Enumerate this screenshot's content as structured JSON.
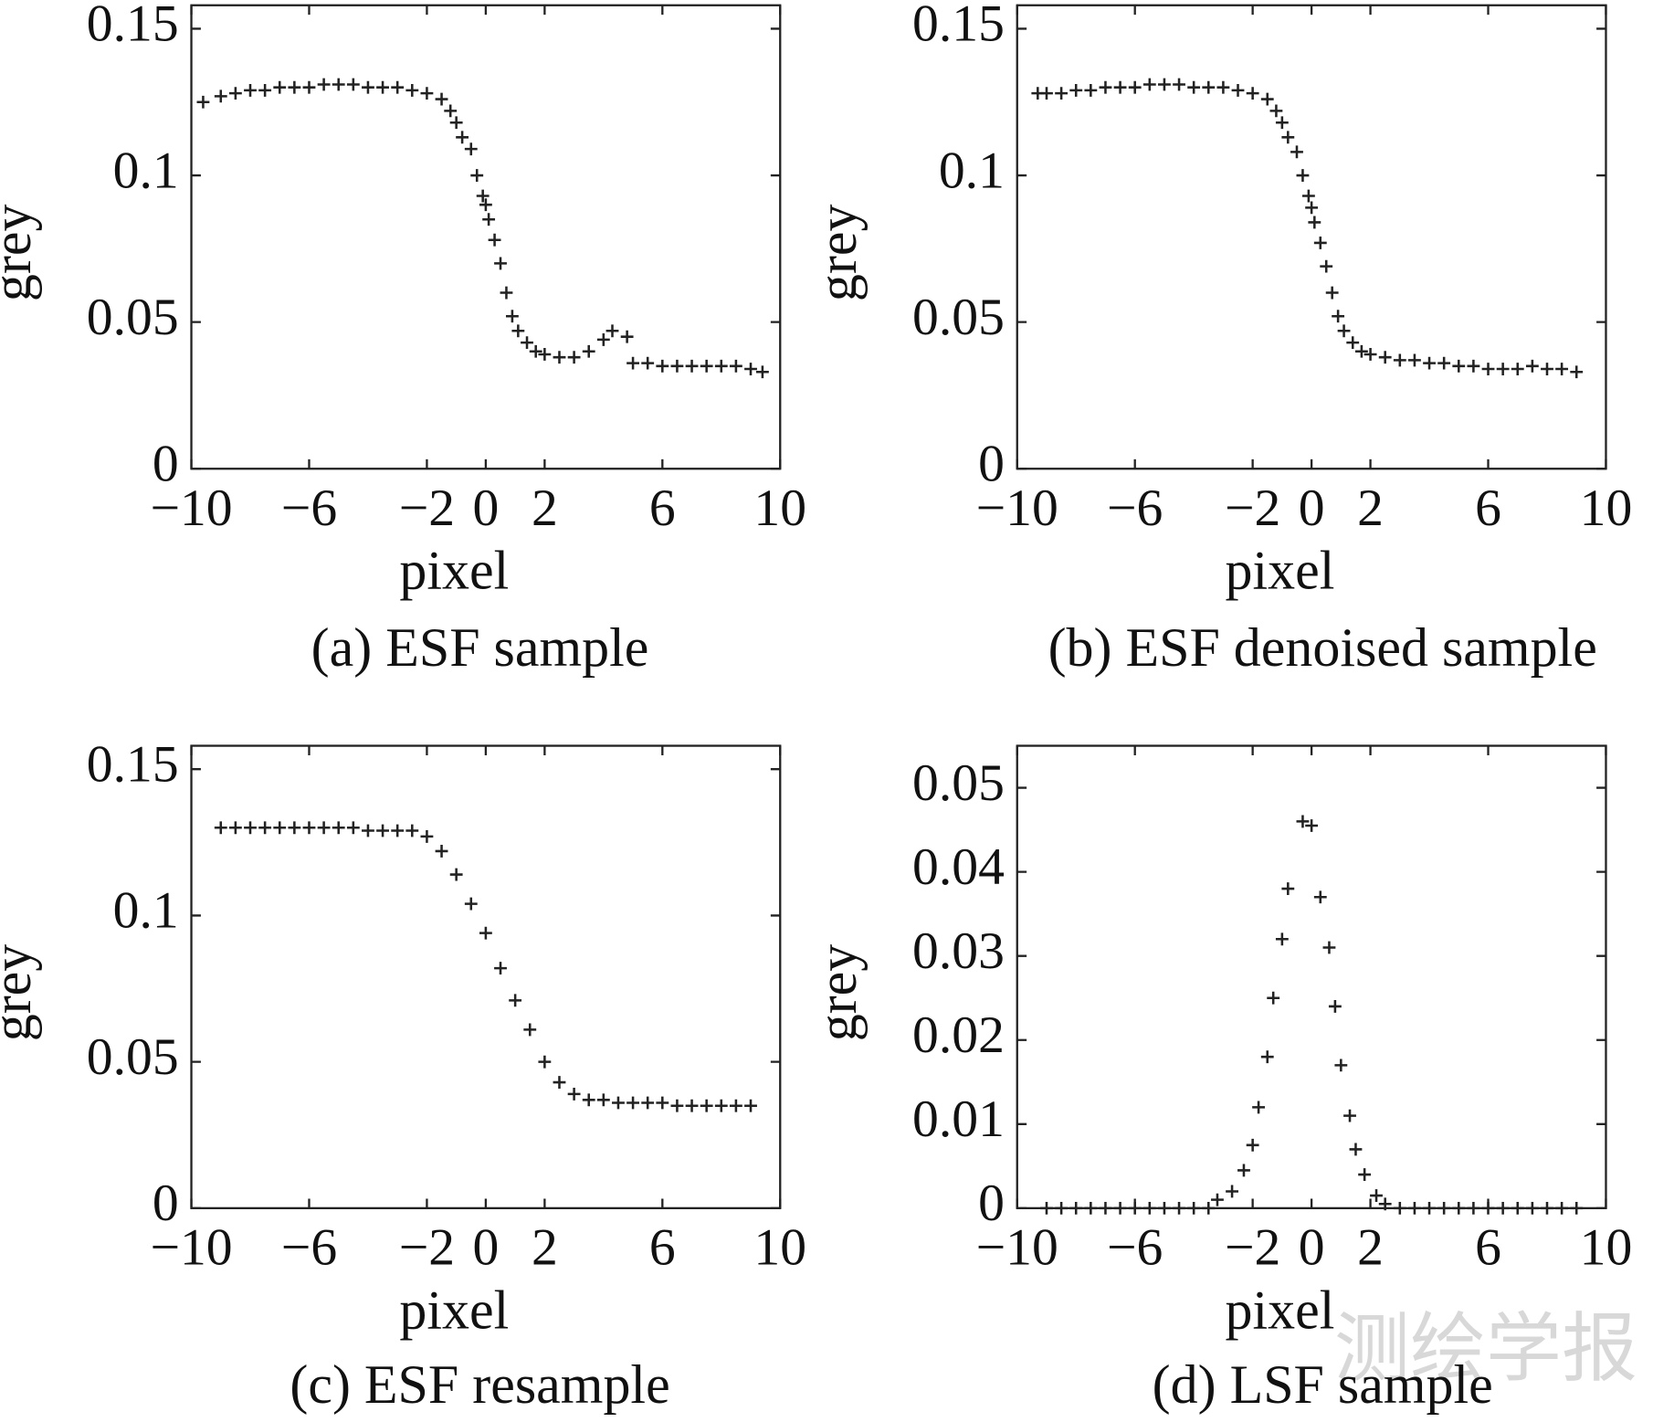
{
  "chart_data": [
    {
      "type": "scatter",
      "caption": "(a) ESF sample",
      "x_label": "pixel",
      "y_label": "grey",
      "color": "#222222",
      "xlim": [
        -10,
        10
      ],
      "ylim": [
        0,
        0.158
      ],
      "xticks": [
        {
          "value": -10,
          "label": "−10"
        },
        {
          "value": -6,
          "label": "−6"
        },
        {
          "value": -2,
          "label": "−2"
        },
        0,
        2,
        6,
        10
      ],
      "yticks": [
        0,
        0.05,
        0.1,
        0.15
      ],
      "series": [
        {
          "name": "ESF sample",
          "color": "#222222",
          "x": [
            -9.6,
            -9,
            -8.5,
            -8,
            -7.5,
            -7,
            -6.5,
            -6,
            -5.5,
            -5,
            -4.5,
            -4,
            -3.5,
            -3,
            -2.5,
            -2,
            -1.5,
            -1.2,
            -1,
            -0.8,
            -0.5,
            -0.3,
            -0.1,
            0,
            0.1,
            0.3,
            0.5,
            0.7,
            0.9,
            1.1,
            1.4,
            1.7,
            2,
            2.5,
            3,
            3.5,
            4,
            4.3,
            4.8,
            5,
            5.5,
            6,
            6.5,
            7,
            7.5,
            8,
            8.5,
            9,
            9.4
          ],
          "values": [
            0.125,
            0.127,
            0.128,
            0.129,
            0.129,
            0.13,
            0.13,
            0.13,
            0.131,
            0.131,
            0.131,
            0.13,
            0.13,
            0.13,
            0.129,
            0.128,
            0.126,
            0.122,
            0.118,
            0.113,
            0.109,
            0.1,
            0.093,
            0.09,
            0.085,
            0.078,
            0.07,
            0.06,
            0.052,
            0.047,
            0.043,
            0.04,
            0.039,
            0.038,
            0.038,
            0.04,
            0.044,
            0.047,
            0.045,
            0.036,
            0.036,
            0.035,
            0.035,
            0.035,
            0.035,
            0.035,
            0.035,
            0.034,
            0.033
          ]
        }
      ]
    },
    {
      "type": "scatter",
      "caption": "(b) ESF denoised sample",
      "x_label": "pixel",
      "y_label": "grey",
      "color": "#222222",
      "xlim": [
        -10,
        10
      ],
      "ylim": [
        0,
        0.158
      ],
      "xticks": [
        {
          "value": -10,
          "label": "−10"
        },
        {
          "value": -6,
          "label": "−6"
        },
        {
          "value": -2,
          "label": "−2"
        },
        0,
        2,
        6,
        10
      ],
      "yticks": [
        0,
        0.05,
        0.1,
        0.15
      ],
      "series": [
        {
          "name": "ESF denoised sample",
          "color": "#222222",
          "x": [
            -9.3,
            -9,
            -8.5,
            -8,
            -7.5,
            -7,
            -6.5,
            -6,
            -5.5,
            -5,
            -4.5,
            -4,
            -3.5,
            -3,
            -2.5,
            -2,
            -1.5,
            -1.2,
            -1,
            -0.8,
            -0.5,
            -0.3,
            -0.1,
            0,
            0.1,
            0.3,
            0.5,
            0.7,
            0.9,
            1.1,
            1.4,
            1.7,
            2,
            2.5,
            3,
            3.5,
            4,
            4.5,
            5,
            5.5,
            6,
            6.5,
            7,
            7.5,
            8,
            8.5,
            9
          ],
          "values": [
            0.128,
            0.128,
            0.128,
            0.129,
            0.129,
            0.13,
            0.13,
            0.13,
            0.131,
            0.131,
            0.131,
            0.13,
            0.13,
            0.13,
            0.129,
            0.128,
            0.126,
            0.122,
            0.118,
            0.113,
            0.108,
            0.1,
            0.093,
            0.089,
            0.084,
            0.077,
            0.069,
            0.06,
            0.052,
            0.047,
            0.043,
            0.04,
            0.039,
            0.038,
            0.037,
            0.037,
            0.036,
            0.036,
            0.035,
            0.035,
            0.034,
            0.034,
            0.034,
            0.035,
            0.034,
            0.034,
            0.033
          ]
        }
      ]
    },
    {
      "type": "scatter",
      "caption": "(c) ESF resample",
      "x_label": "pixel",
      "y_label": "grey",
      "color": "#222222",
      "xlim": [
        -10,
        10
      ],
      "ylim": [
        0,
        0.158
      ],
      "xticks": [
        {
          "value": -10,
          "label": "−10"
        },
        {
          "value": -6,
          "label": "−6"
        },
        {
          "value": -2,
          "label": "−2"
        },
        0,
        2,
        6,
        10
      ],
      "yticks": [
        0,
        0.05,
        0.1,
        0.15
      ],
      "series": [
        {
          "name": "ESF resample",
          "color": "#222222",
          "x": [
            -9,
            -8.5,
            -8,
            -7.5,
            -7,
            -6.5,
            -6,
            -5.5,
            -5,
            -4.5,
            -4,
            -3.5,
            -3,
            -2.5,
            -2,
            -1.5,
            -1,
            -0.5,
            0,
            0.5,
            1,
            1.5,
            2,
            2.5,
            3,
            3.5,
            4,
            4.5,
            5,
            5.5,
            6,
            6.5,
            7,
            7.5,
            8,
            8.5,
            9
          ],
          "values": [
            0.13,
            0.13,
            0.13,
            0.13,
            0.13,
            0.13,
            0.13,
            0.13,
            0.13,
            0.13,
            0.129,
            0.129,
            0.129,
            0.129,
            0.127,
            0.122,
            0.114,
            0.104,
            0.094,
            0.082,
            0.071,
            0.061,
            0.05,
            0.043,
            0.039,
            0.037,
            0.037,
            0.036,
            0.036,
            0.036,
            0.036,
            0.035,
            0.035,
            0.035,
            0.035,
            0.035,
            0.035
          ]
        }
      ]
    },
    {
      "type": "scatter",
      "caption": "(d) LSF sample",
      "x_label": "pixel",
      "y_label": "grey",
      "color": "#222222",
      "xlim": [
        -10,
        10
      ],
      "ylim": [
        0,
        0.055
      ],
      "xticks": [
        {
          "value": -10,
          "label": "−10"
        },
        {
          "value": -6,
          "label": "−6"
        },
        {
          "value": -2,
          "label": "−2"
        },
        0,
        2,
        6,
        10
      ],
      "yticks": [
        0,
        0.01,
        0.02,
        0.03,
        0.04,
        0.05
      ],
      "series": [
        {
          "name": "LSF sample",
          "color": "#222222",
          "x": [
            -9,
            -8.5,
            -8,
            -7.5,
            -7,
            -6.5,
            -6,
            -5.5,
            -5,
            -4.5,
            -4,
            -3.5,
            -3.2,
            -2.7,
            -2.3,
            -2,
            -1.8,
            -1.5,
            -1.3,
            -1,
            -0.8,
            -0.3,
            0,
            0.3,
            0.6,
            0.8,
            1,
            1.3,
            1.5,
            1.8,
            2.2,
            2.5,
            3,
            3.5,
            4,
            4.5,
            5,
            5.5,
            6,
            6.5,
            7,
            7.5,
            8,
            8.5,
            9
          ],
          "values": [
            0,
            0,
            0,
            0,
            0,
            0,
            0,
            0,
            0,
            0,
            0,
            0,
            0.001,
            0.002,
            0.0045,
            0.0075,
            0.012,
            0.018,
            0.025,
            0.032,
            0.038,
            0.046,
            0.0455,
            0.037,
            0.031,
            0.024,
            0.017,
            0.011,
            0.007,
            0.004,
            0.0015,
            0.0005,
            0,
            0,
            0,
            0,
            0,
            0,
            0,
            0,
            0,
            0,
            0,
            0,
            0
          ]
        }
      ]
    }
  ],
  "watermark": "测绘学报"
}
